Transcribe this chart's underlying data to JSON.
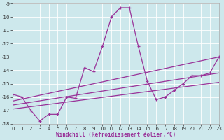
{
  "xlabel": "Windchill (Refroidissement éolien,°C)",
  "background_color": "#cde8ec",
  "grid_color": "#b8d8dc",
  "line_color": "#993399",
  "xlim": [
    0,
    23
  ],
  "ylim": [
    -18,
    -9
  ],
  "xticks": [
    0,
    1,
    2,
    3,
    4,
    5,
    6,
    7,
    8,
    9,
    10,
    11,
    12,
    13,
    14,
    15,
    16,
    17,
    18,
    19,
    20,
    21,
    22,
    23
  ],
  "yticks": [
    -18,
    -17,
    -16,
    -15,
    -14,
    -13,
    -12,
    -11,
    -10,
    -9
  ],
  "main_x": [
    0,
    1,
    2,
    3,
    4,
    5,
    6,
    7,
    8,
    9,
    10,
    11,
    12,
    13,
    14,
    15,
    16,
    17,
    18,
    19,
    20,
    21,
    22,
    23
  ],
  "main_y": [
    -15.8,
    -16.0,
    -17.0,
    -17.8,
    -17.3,
    -17.3,
    -16.0,
    -16.1,
    -13.8,
    -14.1,
    -12.2,
    -10.0,
    -9.3,
    -9.3,
    -12.2,
    -14.8,
    -16.2,
    -16.0,
    -15.5,
    -15.0,
    -14.4,
    -14.4,
    -14.2,
    -13.0
  ],
  "trend1_x": [
    0,
    23
  ],
  "trend1_y": [
    -16.3,
    -13.0
  ],
  "trend2_x": [
    0,
    23
  ],
  "trend2_y": [
    -16.6,
    -14.2
  ],
  "trend3_x": [
    0,
    23
  ],
  "trend3_y": [
    -16.9,
    -14.9
  ],
  "tick_fontsize": 5,
  "xlabel_fontsize": 5.5
}
